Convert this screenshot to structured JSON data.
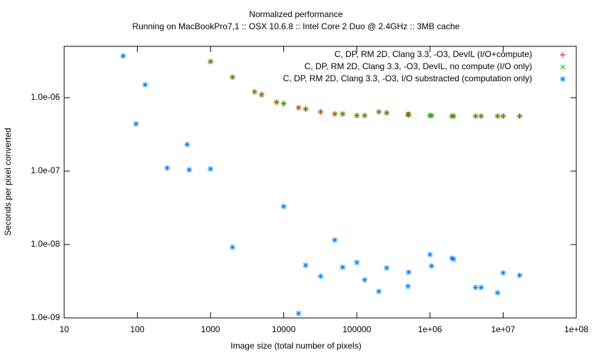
{
  "chart_data": {
    "type": "scatter",
    "title": "Normalized performance",
    "subtitle": "Running on MacBookPro7,1 :: OSX 10.6.8 :: Intel Core 2 Duo @ 2.4GHz :: 3MB cache",
    "x_label": "Image size (total number of pixels)",
    "y_label": "Seconds per pixel converted",
    "log_x": true,
    "log_y": true,
    "grid": false,
    "legend": "top-right",
    "xlim": [
      10,
      100000000
    ],
    "ylim": [
      1e-09,
      5e-06
    ],
    "xticks": [
      10,
      100,
      1000,
      10000,
      100000,
      {
        "value": 1000000,
        "label": "1e+06"
      },
      {
        "value": 10000000,
        "label": "1e+07"
      },
      {
        "value": 100000000,
        "label": "1e+08"
      }
    ],
    "yticks": [
      {
        "value": 1e-09,
        "label": "1.0e-09"
      },
      {
        "value": 1e-08,
        "label": "1.0e-08"
      },
      {
        "value": 1e-07,
        "label": "1.0e-07"
      },
      {
        "value": 1e-06,
        "label": "1.0e-06"
      }
    ],
    "series": [
      {
        "name": "C, DP, RM 2D, Clang 3.3, -O3, DevIL (I/O+compute)",
        "color": "#ff0000",
        "marker": "plus",
        "x": [
          1000,
          2000,
          4000,
          5000,
          8000,
          10000,
          16000,
          20000,
          32000,
          50000,
          64000,
          100000,
          128000,
          200000,
          256000,
          500000,
          512000,
          1000000,
          1050000,
          2000000,
          2100000,
          4200000,
          5000000,
          8400000,
          10000000,
          16800000
        ],
        "values": [
          3.1e-06,
          1.9e-06,
          1.2e-06,
          1.1e-06,
          8.7e-07,
          8.3e-07,
          7.3e-07,
          7e-07,
          6.4e-07,
          6e-07,
          6e-07,
          5.7e-07,
          5.7e-07,
          6.4e-07,
          6.2e-07,
          5.9e-07,
          5.9e-07,
          5.7e-07,
          5.7e-07,
          5.6e-07,
          5.6e-07,
          5.6e-07,
          5.6e-07,
          5.6e-07,
          5.6e-07,
          5.6e-07
        ]
      },
      {
        "name": "C, DP, RM 2D, Clang 3.3, -O3, DevIL, no compute (I/O only)",
        "color": "#00c000",
        "marker": "cross",
        "x": [
          1000,
          2000,
          4000,
          5000,
          8000,
          10000,
          16000,
          20000,
          32000,
          50000,
          64000,
          100000,
          128000,
          200000,
          256000,
          500000,
          512000,
          1000000,
          1050000,
          2000000,
          2100000,
          4200000,
          5000000,
          8400000,
          10000000,
          16800000
        ],
        "values": [
          3.1e-06,
          1.9e-06,
          1.2e-06,
          1.1e-06,
          8.7e-07,
          8.3e-07,
          7.3e-07,
          7e-07,
          6.4e-07,
          6e-07,
          6e-07,
          5.7e-07,
          5.7e-07,
          6.4e-07,
          6.2e-07,
          5.9e-07,
          5.9e-07,
          5.7e-07,
          5.7e-07,
          5.6e-07,
          5.6e-07,
          5.6e-07,
          5.6e-07,
          5.6e-07,
          5.6e-07,
          5.6e-07
        ]
      },
      {
        "name": "C, DP, RM 2D, Clang 3.3, -O3, I/O substracted (computation only)",
        "color": "#0080ff",
        "marker": "star",
        "x": [
          64,
          96,
          128,
          256,
          480,
          512,
          1000,
          2000,
          10000,
          16000,
          20000,
          32000,
          50000,
          64000,
          100000,
          128000,
          200000,
          256000,
          500000,
          512000,
          1000000,
          1050000,
          2000000,
          2100000,
          4200000,
          5000000,
          8400000,
          10000000,
          16800000
        ],
        "values": [
          3.7e-06,
          4.4e-07,
          1.5e-06,
          1.1e-07,
          2.3e-07,
          1.04e-07,
          1.07e-07,
          9.2e-09,
          3.3e-08,
          1.15e-09,
          5.2e-09,
          3.7e-09,
          1.15e-08,
          4.9e-09,
          5.7e-09,
          3.3e-09,
          2.3e-09,
          4.8e-09,
          2.7e-09,
          4.2e-09,
          7.3e-09,
          5.1e-09,
          6.5e-09,
          6.3e-09,
          2.6e-09,
          2.6e-09,
          2.2e-09,
          4.1e-09,
          3.8e-09
        ]
      }
    ]
  }
}
